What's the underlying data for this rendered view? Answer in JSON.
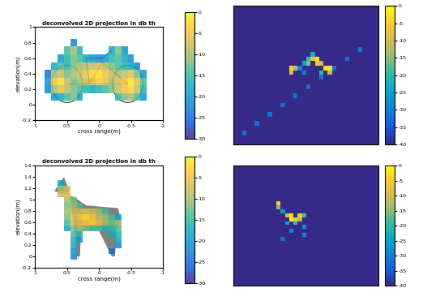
{
  "chart_data": [
    {
      "type": "heatmap",
      "title": "deconvolved 2D projection in db th",
      "x_label": "cross range(m)",
      "y_label": "elevation(m)",
      "xlim": [
        1,
        -1
      ],
      "xticks": [
        1,
        0.5,
        0,
        -0.5,
        -1
      ],
      "ylim": [
        -0.2,
        1
      ],
      "yticks": [
        -0.2,
        0,
        0.2,
        0.4,
        0.6,
        0.8,
        1
      ],
      "x": [
        0.8,
        0.7,
        0.6,
        0.5,
        0.4,
        0.3,
        0.2,
        0.1,
        0,
        -0.1,
        -0.2,
        -0.3,
        -0.4,
        -0.5,
        -0.6,
        -0.7,
        -0.8
      ],
      "y": [
        0.1,
        0.2,
        0.3,
        0.4,
        0.5,
        0.6,
        0.7,
        0.8
      ],
      "cells": [
        [
          null,
          -20,
          -18,
          -15,
          -12,
          -18,
          null,
          null,
          null,
          null,
          null,
          -15,
          -12,
          -10,
          -14,
          -20,
          null
        ],
        [
          -22,
          -10,
          -6,
          -9,
          -12,
          -14,
          -16,
          -18,
          -16,
          -14,
          -12,
          -8,
          -5,
          -3,
          -8,
          -16,
          null
        ],
        [
          -20,
          -5,
          -2,
          -8,
          -12,
          -10,
          -8,
          -6,
          -4,
          -6,
          -10,
          -7,
          -4,
          -2,
          -6,
          -14,
          null
        ],
        [
          -24,
          -10,
          -8,
          -12,
          -10,
          -8,
          -6,
          -3,
          -2,
          -5,
          -8,
          -10,
          -8,
          -6,
          -12,
          -20,
          null
        ],
        [
          null,
          -18,
          -14,
          -16,
          -12,
          -10,
          -9,
          -8,
          -7,
          -9,
          -12,
          -14,
          -16,
          -18,
          -22,
          null,
          null
        ],
        [
          null,
          null,
          -20,
          -16,
          -12,
          -14,
          -18,
          -20,
          -22,
          -20,
          -16,
          -14,
          -18,
          -22,
          null,
          null,
          null
        ],
        [
          null,
          null,
          null,
          -14,
          -10,
          -16,
          null,
          null,
          null,
          null,
          -18,
          -12,
          -20,
          null,
          null,
          null,
          null
        ],
        [
          null,
          null,
          null,
          null,
          -22,
          null,
          null,
          null,
          null,
          null,
          null,
          null,
          null,
          null,
          null,
          null,
          null
        ]
      ],
      "colorbar_range": [
        -30,
        0
      ],
      "colorbar_ticks": [
        0,
        -5,
        -10,
        -15,
        -20,
        -25,
        -30
      ]
    },
    {
      "type": "heatmap",
      "tick_labels": false,
      "grid_size": [
        30,
        34
      ],
      "background": -40,
      "cells": [
        [
          27,
          2,
          -32
        ],
        [
          25,
          5,
          -32
        ],
        [
          23,
          8,
          -32
        ],
        [
          21,
          11,
          -32
        ],
        [
          19,
          14,
          -32
        ],
        [
          17,
          17,
          -32
        ],
        [
          15,
          20,
          -32
        ],
        [
          13,
          23,
          -32
        ],
        [
          11,
          26,
          -32
        ],
        [
          9,
          29,
          -32
        ],
        [
          13,
          13,
          -5
        ],
        [
          14,
          13,
          -10
        ],
        [
          13,
          14,
          -12
        ],
        [
          12,
          17,
          -15
        ],
        [
          11,
          18,
          -8
        ],
        [
          11,
          19,
          -3
        ],
        [
          12,
          19,
          -6
        ],
        [
          12,
          20,
          -10
        ],
        [
          13,
          21,
          -4
        ],
        [
          13,
          22,
          -2
        ],
        [
          14,
          22,
          -12
        ],
        [
          12,
          16,
          -25
        ],
        [
          14,
          16,
          -30
        ],
        [
          13,
          15,
          -28
        ],
        [
          11,
          17,
          -20
        ],
        [
          10,
          18,
          -22
        ],
        [
          14,
          20,
          -20
        ]
      ],
      "colorbar_range": [
        -40,
        0
      ],
      "colorbar_ticks": [
        0,
        -5,
        -10,
        -15,
        -20,
        -25,
        -30,
        -35,
        -40
      ]
    },
    {
      "type": "heatmap",
      "title": "deconvolved 2D projection in db th",
      "x_label": "cross range(m)",
      "y_label": "elevation(m)",
      "xlim": [
        1,
        -1
      ],
      "xticks": [
        1,
        0.5,
        0,
        -0.5,
        -1
      ],
      "ylim": [
        -0.2,
        1.6
      ],
      "yticks": [
        -0.2,
        0,
        0.2,
        0.4,
        0.6,
        0.8,
        1,
        1.2,
        1.4,
        1.6
      ],
      "x": [
        0.7,
        0.6,
        0.5,
        0.4,
        0.3,
        0.2,
        0.1,
        0,
        -0.1,
        -0.2,
        -0.3,
        -0.4,
        -0.5
      ],
      "y": [
        0,
        0.1,
        0.2,
        0.3,
        0.4,
        0.5,
        0.6,
        0.7,
        0.8,
        0.9,
        1.0,
        1.1,
        1.2,
        1.3
      ],
      "cells": [
        [
          null,
          null,
          null,
          -22,
          null,
          null,
          null,
          null,
          null,
          null,
          null,
          null,
          null
        ],
        [
          null,
          null,
          null,
          -20,
          null,
          null,
          null,
          null,
          null,
          -24,
          null,
          null,
          null
        ],
        [
          null,
          null,
          null,
          -18,
          null,
          null,
          null,
          null,
          null,
          null,
          -22,
          null,
          null
        ],
        [
          null,
          null,
          null,
          -16,
          -20,
          null,
          null,
          null,
          null,
          null,
          -18,
          null,
          null
        ],
        [
          null,
          null,
          null,
          -14,
          -16,
          null,
          null,
          null,
          null,
          -18,
          -16,
          null,
          null
        ],
        [
          null,
          null,
          -18,
          -12,
          -10,
          -12,
          -14,
          -14,
          -16,
          -15,
          -14,
          null,
          null
        ],
        [
          null,
          null,
          -14,
          -8,
          -6,
          -4,
          -3,
          -6,
          -10,
          -12,
          -10,
          null,
          null
        ],
        [
          null,
          null,
          -12,
          -6,
          -4,
          -2,
          -4,
          -8,
          -10,
          -14,
          -18,
          null,
          null
        ],
        [
          null,
          null,
          -10,
          -8,
          -8,
          -6,
          -8,
          -10,
          -14,
          null,
          null,
          null,
          null
        ],
        [
          null,
          null,
          -12,
          -10,
          -14,
          null,
          null,
          null,
          null,
          null,
          null,
          null,
          null
        ],
        [
          null,
          null,
          -10,
          -12,
          null,
          null,
          null,
          null,
          null,
          null,
          null,
          null,
          null
        ],
        [
          null,
          -8,
          -6,
          null,
          null,
          null,
          null,
          null,
          null,
          null,
          null,
          null,
          null
        ],
        [
          null,
          -10,
          -8,
          null,
          null,
          null,
          null,
          null,
          null,
          null,
          null,
          null,
          null
        ],
        [
          null,
          -18,
          null,
          null,
          null,
          null,
          null,
          null,
          null,
          null,
          null,
          null,
          null
        ]
      ],
      "colorbar_range": [
        -30,
        0
      ],
      "colorbar_ticks": [
        0,
        -5,
        -10,
        -15,
        -20,
        -25,
        -30
      ]
    },
    {
      "type": "heatmap",
      "tick_labels": false,
      "grid_size": [
        30,
        34
      ],
      "background": -40,
      "cells": [
        [
          9,
          10,
          -5
        ],
        [
          10,
          10,
          -15
        ],
        [
          12,
          12,
          -10
        ],
        [
          12,
          13,
          -3
        ],
        [
          13,
          13,
          -2
        ],
        [
          13,
          14,
          -8
        ],
        [
          12,
          15,
          -6
        ],
        [
          13,
          15,
          -12
        ],
        [
          12,
          16,
          -18
        ],
        [
          14,
          12,
          -25
        ],
        [
          14,
          14,
          -20
        ],
        [
          15,
          16,
          -28
        ],
        [
          16,
          13,
          -30
        ],
        [
          17,
          16,
          -30
        ],
        [
          18,
          11,
          -32
        ],
        [
          11,
          11,
          -26
        ]
      ],
      "colorbar_range": [
        -40,
        0
      ],
      "colorbar_ticks": [
        0,
        -5,
        -10,
        -15,
        -20,
        -25,
        -30,
        -35,
        -40
      ]
    }
  ]
}
